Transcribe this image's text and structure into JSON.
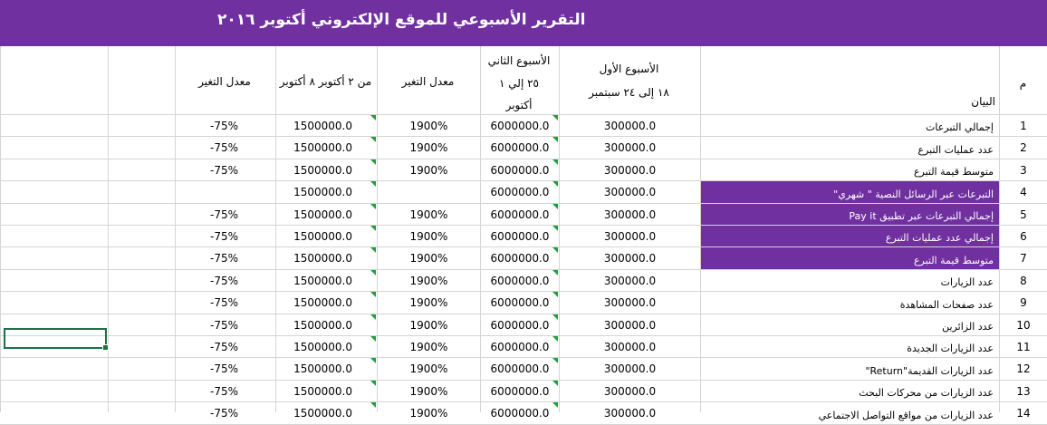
{
  "title": "التقرير الأسبوعي للموقع الإلكتروني أكتوبر ٢٠١٦",
  "headers": {
    "num": "م",
    "label": "البيان",
    "week1_title": "الأسبوع الأول",
    "week1_range": "١٨ إلى ٢٤ سبتمبر",
    "week2_line1": "الأسبوع الثاني",
    "week2_line2": "٢٥ إلي ١",
    "week2_line3": "أكتوبر",
    "rate1": "معدل التغير",
    "week3": "من ٢ أكتوبر ٨ أكتوبر",
    "rate2": "معدل التغير"
  },
  "rows": [
    {
      "num": "1",
      "label": "إجمالي التبرعات",
      "w1": "300000.0",
      "w2": "6000000.0",
      "rate1": "1900%",
      "w3": "1500000.0",
      "rate2": "-75%",
      "highlight": false
    },
    {
      "num": "2",
      "label": "عدد عمليات التبرع",
      "w1": "300000.0",
      "w2": "6000000.0",
      "rate1": "1900%",
      "w3": "1500000.0",
      "rate2": "-75%",
      "highlight": false
    },
    {
      "num": "3",
      "label": "متوسط قيمة التبرع",
      "w1": "300000.0",
      "w2": "6000000.0",
      "rate1": "1900%",
      "w3": "1500000.0",
      "rate2": "-75%",
      "highlight": false
    },
    {
      "num": "4",
      "label": "التبرعات عبر الرسائل النصية \" شهري\"",
      "w1": "300000.0",
      "w2": "6000000.0",
      "rate1": "",
      "w3": "1500000.0",
      "rate2": "",
      "highlight": true
    },
    {
      "num": "5",
      "label": "إجمالي التبرعات عبر تطبيق Pay it",
      "w1": "300000.0",
      "w2": "6000000.0",
      "rate1": "1900%",
      "w3": "1500000.0",
      "rate2": "-75%",
      "highlight": true
    },
    {
      "num": "6",
      "label": "إجمالي عدد عمليات التبرع",
      "w1": "300000.0",
      "w2": "6000000.0",
      "rate1": "1900%",
      "w3": "1500000.0",
      "rate2": "-75%",
      "highlight": true
    },
    {
      "num": "7",
      "label": "متوسط قيمة التبرع",
      "w1": "300000.0",
      "w2": "6000000.0",
      "rate1": "1900%",
      "w3": "1500000.0",
      "rate2": "-75%",
      "highlight": true
    },
    {
      "num": "8",
      "label": "عدد الزيارات",
      "w1": "300000.0",
      "w2": "6000000.0",
      "rate1": "1900%",
      "w3": "1500000.0",
      "rate2": "-75%",
      "highlight": false
    },
    {
      "num": "9",
      "label": "عدد صفحات المشاهدة",
      "w1": "300000.0",
      "w2": "6000000.0",
      "rate1": "1900%",
      "w3": "1500000.0",
      "rate2": "-75%",
      "highlight": false
    },
    {
      "num": "10",
      "label": "عدد الزائرين",
      "w1": "300000.0",
      "w2": "6000000.0",
      "rate1": "1900%",
      "w3": "1500000.0",
      "rate2": "-75%",
      "highlight": false
    },
    {
      "num": "11",
      "label": "عدد الزيارات الجديدة",
      "w1": "300000.0",
      "w2": "6000000.0",
      "rate1": "1900%",
      "w3": "1500000.0",
      "rate2": "-75%",
      "highlight": false
    },
    {
      "num": "12",
      "label": "عدد الزيارات القديمة\"Return\"",
      "w1": "300000.0",
      "w2": "6000000.0",
      "rate1": "1900%",
      "w3": "1500000.0",
      "rate2": "-75%",
      "highlight": false
    },
    {
      "num": "13",
      "label": "عدد الزيارات من محركات البحث",
      "w1": "300000.0",
      "w2": "6000000.0",
      "rate1": "1900%",
      "w3": "1500000.0",
      "rate2": "-75%",
      "highlight": false
    },
    {
      "num": "14",
      "label": "عدد الزيارات من مواقع التواصل الاجتماعي",
      "w1": "300000.0",
      "w2": "6000000.0",
      "rate1": "1900%",
      "w3": "1500000.0",
      "rate2": "-75%",
      "highlight": false
    }
  ],
  "colors": {
    "header_purple": "#7030a0",
    "gridline": "#d4d4d4",
    "selection": "#1e7145",
    "comment_marker": "#1e9e3a"
  }
}
